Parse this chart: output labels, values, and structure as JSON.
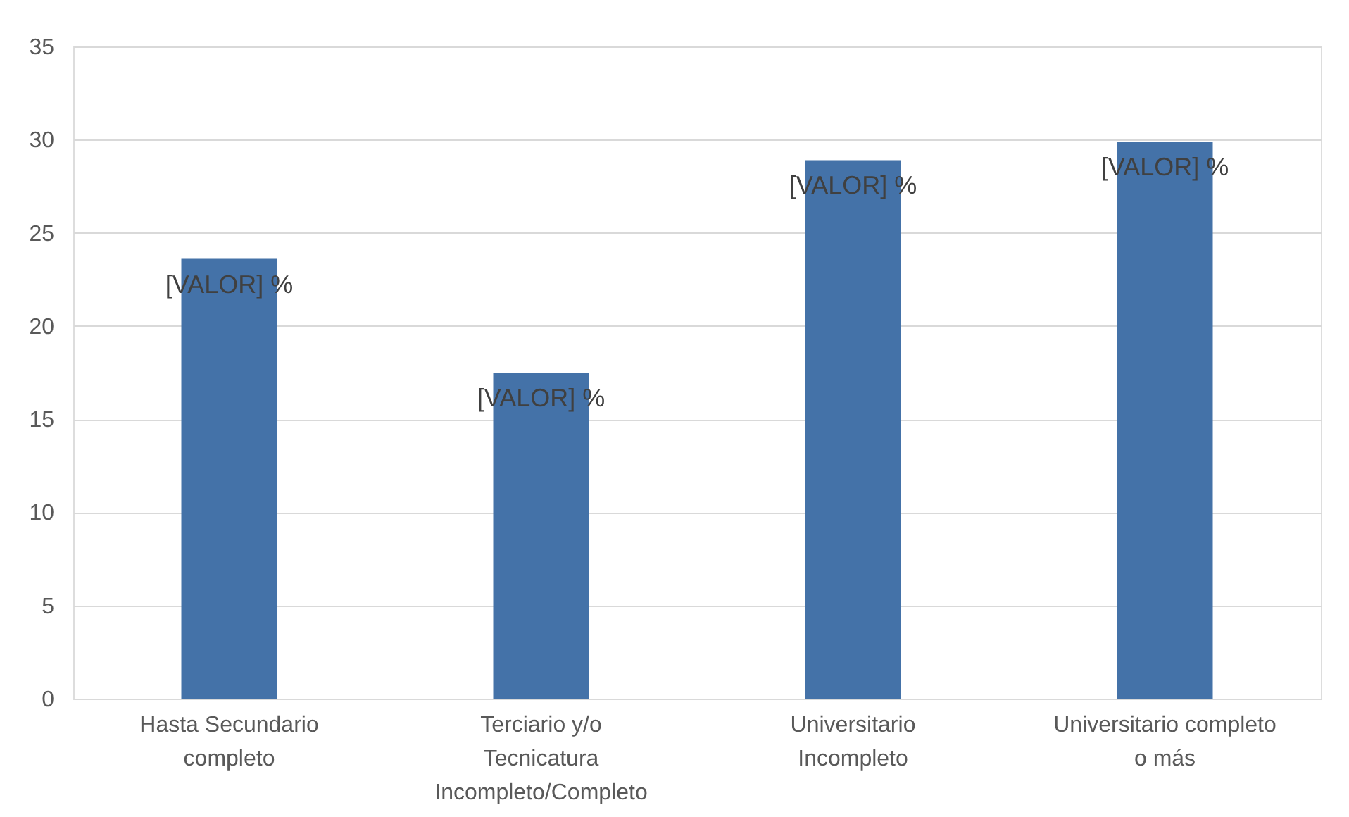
{
  "chart_data": {
    "type": "bar",
    "categories": [
      "Hasta Secundario completo",
      "Terciario y/o Tecnicatura Incompleto/Completo",
      "Universitario Incompleto",
      "Universitario completo o más"
    ],
    "values": [
      23.6,
      17.5,
      28.9,
      29.9
    ],
    "value_labels": [
      "[VALOR] %",
      "[VALOR] %",
      "[VALOR] %",
      "[VALOR] %"
    ],
    "color": "#4472a8",
    "ylim": [
      0,
      35
    ],
    "yticks": [
      0,
      5,
      10,
      15,
      20,
      25,
      30,
      35
    ],
    "grid": "y"
  }
}
